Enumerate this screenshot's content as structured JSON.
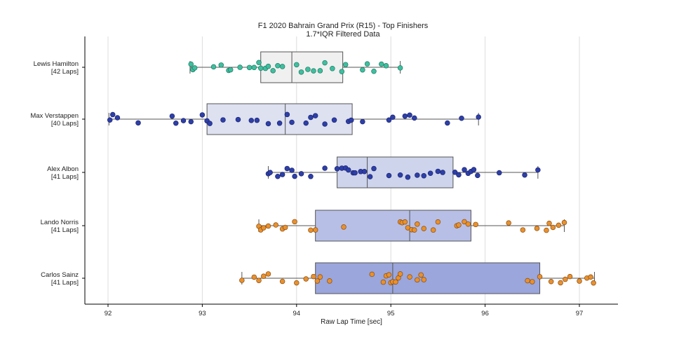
{
  "chart_data": {
    "type": "box",
    "title": "F1 2020 Bahrain Grand Prix (R15) - Top Finishers",
    "subtitle": "1.7*IQR Filtered Data",
    "xlabel": "Raw Lap Time [sec]",
    "ylabel": "",
    "xlim": [
      91.75,
      97.4
    ],
    "xticks": [
      92,
      93,
      94,
      95,
      96,
      97
    ],
    "grid": "vertical",
    "orientation": "horizontal",
    "series": [
      {
        "name": "Lewis Hamilton",
        "laps": "[42 Laps]",
        "color": "#3fbf9f",
        "box_color": "#f0f0f0",
        "whisker_low": 92.87,
        "q1": 93.62,
        "median": 93.95,
        "q3": 94.49,
        "whisker_high": 95.1,
        "points": [
          92.88,
          92.9,
          92.92,
          93.12,
          93.2,
          93.28,
          93.3,
          93.4,
          93.5,
          93.55,
          93.6,
          93.62,
          93.67,
          93.7,
          93.75,
          93.8,
          93.85,
          94.0,
          94.05,
          94.12,
          94.18,
          94.25,
          94.3,
          94.38,
          94.48,
          94.52,
          94.7,
          94.75,
          94.82,
          94.9,
          94.95,
          95.1
        ]
      },
      {
        "name": "Max Verstappen",
        "laps": "[40 Laps]",
        "color": "#2e3fa8",
        "box_color": "#dde1f0",
        "whisker_low": 92.01,
        "q1": 93.05,
        "median": 93.88,
        "q3": 94.59,
        "whisker_high": 95.93,
        "points": [
          92.02,
          92.05,
          92.1,
          92.32,
          92.68,
          92.72,
          92.8,
          92.88,
          93.0,
          93.05,
          93.08,
          93.22,
          93.38,
          93.52,
          93.58,
          93.7,
          93.82,
          93.9,
          93.95,
          94.1,
          94.15,
          94.2,
          94.3,
          94.4,
          94.55,
          94.58,
          94.7,
          94.98,
          95.02,
          95.15,
          95.2,
          95.25,
          95.6,
          95.75,
          95.93
        ]
      },
      {
        "name": "Alex Albon",
        "laps": "[41 Laps]",
        "color": "#2e3fa8",
        "box_color": "#cdd4ec",
        "whisker_low": 93.7,
        "q1": 94.43,
        "median": 94.75,
        "q3": 95.66,
        "whisker_high": 96.56,
        "points": [
          93.7,
          93.72,
          93.8,
          93.85,
          93.9,
          93.95,
          93.98,
          94.05,
          94.15,
          94.3,
          94.43,
          94.48,
          94.52,
          94.55,
          94.6,
          94.62,
          94.68,
          94.72,
          94.78,
          94.82,
          94.98,
          95.1,
          95.18,
          95.28,
          95.35,
          95.42,
          95.5,
          95.55,
          95.68,
          95.72,
          95.78,
          95.82,
          95.85,
          95.88,
          95.92,
          96.15,
          96.42,
          96.56
        ]
      },
      {
        "name": "Lando Norris",
        "laps": "[41 Laps]",
        "color": "#e8912e",
        "box_color": "#b7bfe6",
        "whisker_low": 93.6,
        "q1": 94.2,
        "median": 95.2,
        "q3": 95.85,
        "whisker_high": 96.84,
        "points": [
          93.6,
          93.62,
          93.65,
          93.7,
          93.78,
          93.85,
          93.88,
          93.98,
          94.15,
          94.2,
          94.5,
          95.1,
          95.12,
          95.15,
          95.18,
          95.22,
          95.25,
          95.28,
          95.35,
          95.45,
          95.5,
          95.7,
          95.72,
          95.78,
          95.82,
          95.9,
          96.25,
          96.4,
          96.55,
          96.65,
          96.68,
          96.72,
          96.78,
          96.84
        ]
      },
      {
        "name": "Carlos Sainz",
        "laps": "[41 Laps]",
        "color": "#e8912e",
        "box_color": "#9aa6dc",
        "whisker_low": 93.42,
        "q1": 94.2,
        "median": 95.02,
        "q3": 96.58,
        "whisker_high": 97.16,
        "points": [
          93.42,
          93.55,
          93.6,
          93.65,
          93.7,
          93.85,
          94.0,
          94.1,
          94.18,
          94.22,
          94.25,
          94.35,
          94.8,
          94.92,
          94.95,
          94.98,
          95.0,
          95.02,
          95.05,
          95.08,
          95.1,
          95.2,
          95.28,
          95.32,
          95.35,
          96.45,
          96.5,
          96.58,
          96.7,
          96.8,
          96.85,
          96.9,
          97.0,
          97.08,
          97.12,
          97.15
        ]
      }
    ]
  }
}
